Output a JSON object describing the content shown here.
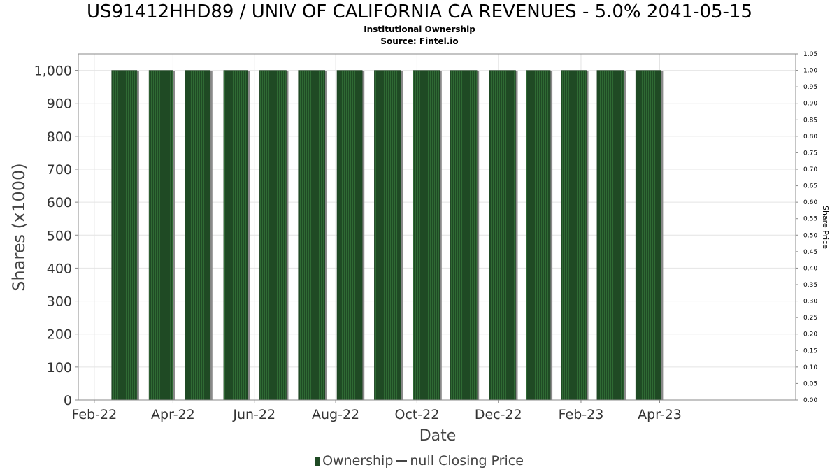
{
  "chart_data": {
    "type": "bar",
    "title": "US91412HHD89 / UNIV OF CALIFORNIA CA REVENUES - 5.0% 2041-05-15",
    "subtitle": "Institutional Ownership",
    "source": "Source: Fintel.io",
    "xlabel": "Date",
    "ylabel": "Shares (x1000)",
    "y2label": "Share Price",
    "ylim": [
      0,
      1050
    ],
    "y2lim": [
      0,
      1.05
    ],
    "yticks": [
      "0",
      "100",
      "200",
      "300",
      "400",
      "500",
      "600",
      "700",
      "800",
      "900",
      "1,000"
    ],
    "yticks_values": [
      0,
      100,
      200,
      300,
      400,
      500,
      600,
      700,
      800,
      900,
      1000
    ],
    "y2ticks": [
      "0.00",
      "0.05",
      "0.10",
      "0.15",
      "0.20",
      "0.25",
      "0.30",
      "0.35",
      "0.40",
      "0.45",
      "0.50",
      "0.55",
      "0.60",
      "0.65",
      "0.70",
      "0.75",
      "0.80",
      "0.85",
      "0.90",
      "0.95",
      "1.00",
      "1.05"
    ],
    "y2ticks_values": [
      0,
      0.05,
      0.1,
      0.15,
      0.2,
      0.25,
      0.3,
      0.35,
      0.4,
      0.45,
      0.5,
      0.55,
      0.6,
      0.65,
      0.7,
      0.75,
      0.8,
      0.85,
      0.9,
      0.95,
      1.0,
      1.05
    ],
    "xlim": [
      "2022-01-20",
      "2023-07-12"
    ],
    "xticks": [
      {
        "label": "Feb-22",
        "date": "2022-02-01"
      },
      {
        "label": "Apr-22",
        "date": "2022-04-01"
      },
      {
        "label": "Jun-22",
        "date": "2022-06-01"
      },
      {
        "label": "Aug-22",
        "date": "2022-08-01"
      },
      {
        "label": "Oct-22",
        "date": "2022-10-01"
      },
      {
        "label": "Dec-22",
        "date": "2022-12-01"
      },
      {
        "label": "Feb-23",
        "date": "2023-02-01"
      },
      {
        "label": "Apr-23",
        "date": "2023-04-01"
      }
    ],
    "bars": [
      {
        "start": "2022-02-14",
        "end": "2022-03-05",
        "value": 1000
      },
      {
        "start": "2022-03-14",
        "end": "2022-04-01",
        "value": 1000
      },
      {
        "start": "2022-04-10",
        "end": "2022-04-29",
        "value": 1000
      },
      {
        "start": "2022-05-09",
        "end": "2022-05-27",
        "value": 1000
      },
      {
        "start": "2022-06-05",
        "end": "2022-06-25",
        "value": 1000
      },
      {
        "start": "2022-07-04",
        "end": "2022-07-24",
        "value": 1000
      },
      {
        "start": "2022-08-02",
        "end": "2022-08-21",
        "value": 1000
      },
      {
        "start": "2022-08-30",
        "end": "2022-09-19",
        "value": 1000
      },
      {
        "start": "2022-09-28",
        "end": "2022-10-18",
        "value": 1000
      },
      {
        "start": "2022-10-26",
        "end": "2022-11-15",
        "value": 1000
      },
      {
        "start": "2022-11-24",
        "end": "2022-12-14",
        "value": 1000
      },
      {
        "start": "2022-12-22",
        "end": "2023-01-09",
        "value": 1000
      },
      {
        "start": "2023-01-17",
        "end": "2023-02-05",
        "value": 1000
      },
      {
        "start": "2023-02-13",
        "end": "2023-03-05",
        "value": 1000
      },
      {
        "start": "2023-03-14",
        "end": "2023-04-02",
        "value": 1000
      }
    ],
    "grid": true,
    "legend_position": "bottom",
    "legend": [
      {
        "label": "Ownership",
        "marker": "bar",
        "color": "#1f4a24"
      },
      {
        "label": "null Closing Price",
        "marker": "line",
        "color": "#444444"
      }
    ],
    "colors": {
      "bar_fill": "#1f4a24",
      "bar_stripe": "#2f6a34",
      "bar_shadow": "#8a8a8a",
      "grid": "#e4e4e4"
    }
  }
}
